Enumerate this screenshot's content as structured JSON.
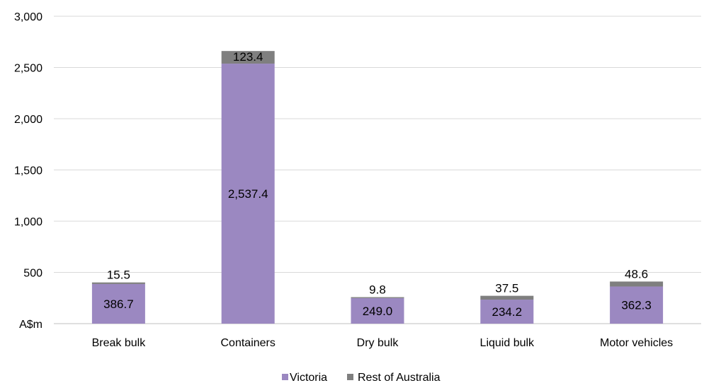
{
  "chart_data": {
    "type": "bar",
    "stacked": true,
    "categories": [
      "Break bulk",
      "Containers",
      "Dry bulk",
      "Liquid bulk",
      "Motor vehicles"
    ],
    "series": [
      {
        "name": "Victoria",
        "color": "#9b88c1",
        "values": [
          386.7,
          2537.4,
          249.0,
          234.2,
          362.3
        ],
        "labels": [
          "386.7",
          "2,537.4",
          "249.0",
          "234.2",
          "362.3"
        ]
      },
      {
        "name": "Rest of Australia",
        "color": "#7f7f7f",
        "values": [
          15.5,
          123.4,
          9.8,
          37.5,
          48.6
        ],
        "labels": [
          "15.5",
          "123.4",
          "9.8",
          "37.5",
          "48.6"
        ]
      }
    ],
    "ylim": [
      0,
      3000
    ],
    "yticks": [
      0,
      500,
      1000,
      1500,
      2000,
      2500,
      3000
    ],
    "ytick_labels": [
      "A$m",
      "500",
      "1,000",
      "1,500",
      "2,000",
      "2,500",
      "3,000"
    ],
    "grid": true,
    "legend_position": "bottom"
  }
}
